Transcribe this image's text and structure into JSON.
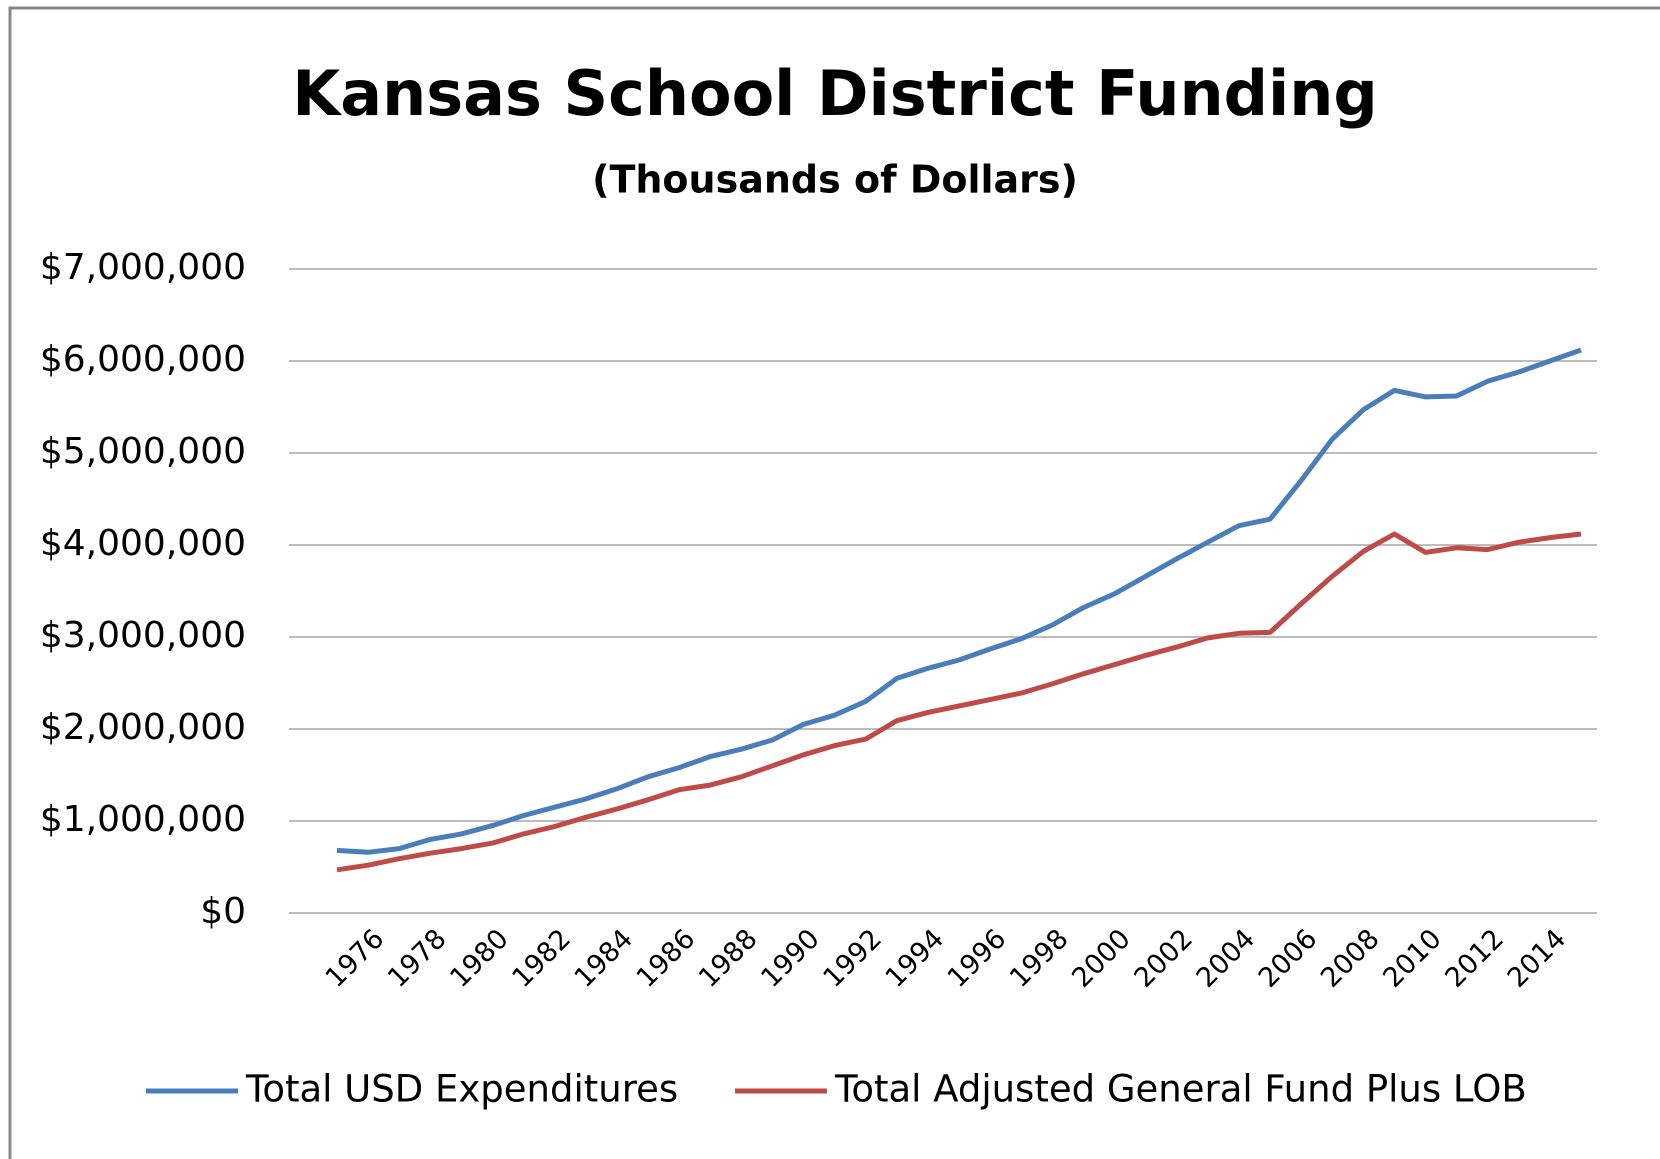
{
  "chart_data": {
    "type": "line",
    "title": "Kansas School District Funding",
    "subtitle": "(Thousands of Dollars)",
    "categories": [
      null,
      "1976",
      null,
      "1978",
      null,
      "1980",
      null,
      "1982",
      null,
      "1984",
      null,
      "1986",
      null,
      "1988",
      null,
      "1990",
      null,
      "1992",
      null,
      "1994",
      null,
      "1996",
      null,
      "1998",
      null,
      "2000",
      null,
      "2002",
      null,
      "2004",
      null,
      "2006",
      null,
      "2008",
      null,
      "2010",
      null,
      "2012",
      null,
      "2014",
      null
    ],
    "series": [
      {
        "name": "Total USD Expenditures",
        "color": "#4a7ebb",
        "values": [
          680000,
          660000,
          700000,
          800000,
          860000,
          950000,
          1060000,
          1150000,
          1240000,
          1350000,
          1480000,
          1580000,
          1700000,
          1780000,
          1880000,
          2050000,
          2150000,
          2300000,
          2550000,
          2660000,
          2750000,
          2870000,
          2980000,
          3130000,
          3320000,
          3470000,
          3660000,
          3850000,
          4030000,
          4210000,
          4280000,
          4700000,
          5150000,
          5470000,
          5680000,
          5610000,
          5620000,
          5780000,
          5880000,
          6000000,
          6120000
        ]
      },
      {
        "name": "Total Adjusted General Fund Plus LOB",
        "color": "#be4b48",
        "values": [
          470000,
          520000,
          590000,
          650000,
          700000,
          760000,
          860000,
          940000,
          1040000,
          1130000,
          1230000,
          1340000,
          1390000,
          1480000,
          1600000,
          1720000,
          1820000,
          1890000,
          2090000,
          2180000,
          2250000,
          2320000,
          2390000,
          2490000,
          2600000,
          2700000,
          2800000,
          2890000,
          2990000,
          3040000,
          3050000,
          3360000,
          3660000,
          3930000,
          4120000,
          3920000,
          3970000,
          3950000,
          4030000,
          4080000,
          4120000
        ]
      }
    ],
    "ylim": [
      0,
      7000000
    ],
    "yticks": [
      {
        "value": 0,
        "label": "$0"
      },
      {
        "value": 1000000,
        "label": "$1,000,000"
      },
      {
        "value": 2000000,
        "label": "$2,000,000"
      },
      {
        "value": 3000000,
        "label": "$3,000,000"
      },
      {
        "value": 4000000,
        "label": "$4,000,000"
      },
      {
        "value": 5000000,
        "label": "$5,000,000"
      },
      {
        "value": 6000000,
        "label": "$6,000,000"
      },
      {
        "value": 7000000,
        "label": "$7,000,000"
      }
    ],
    "grid": true,
    "legend": "bottom"
  }
}
